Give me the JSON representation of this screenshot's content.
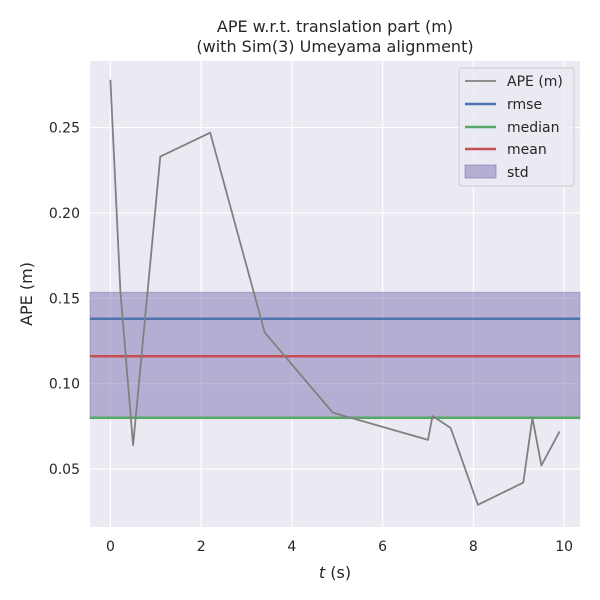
{
  "chart_data": {
    "type": "line",
    "title": "APE w.r.t. translation part (m)",
    "subtitle": "(with Sim(3) Umeyama alignment)",
    "xlabel_italic": "t",
    "xlabel_rest": " (s)",
    "ylabel": "APE (m)",
    "xlim": [
      -0.45,
      10.35
    ],
    "ylim": [
      0.016,
      0.289
    ],
    "xticks": [
      0,
      2,
      4,
      6,
      8,
      10
    ],
    "xtick_labels": [
      "0",
      "2",
      "4",
      "6",
      "8",
      "10"
    ],
    "yticks": [
      0.05,
      0.1,
      0.15,
      0.2,
      0.25
    ],
    "ytick_labels": [
      "0.05",
      "0.10",
      "0.15",
      "0.20",
      "0.25"
    ],
    "grid": true,
    "legend_position": "top-right",
    "series": {
      "name": "APE (m)",
      "color": "#808080",
      "x": [
        0.0,
        0.22,
        0.5,
        1.1,
        2.2,
        3.4,
        4.9,
        7.0,
        7.1,
        7.5,
        8.1,
        9.1,
        9.3,
        9.5,
        9.9
      ],
      "y": [
        0.278,
        0.154,
        0.064,
        0.233,
        0.247,
        0.13,
        0.083,
        0.067,
        0.081,
        0.074,
        0.029,
        0.042,
        0.08,
        0.052,
        0.072
      ]
    },
    "stats": {
      "rmse": {
        "label": "rmse",
        "value": 0.138,
        "color": "#4c72b0"
      },
      "median": {
        "label": "median",
        "value": 0.08,
        "color": "#55a868"
      },
      "mean": {
        "label": "mean",
        "value": 0.116,
        "color": "#c44e52"
      },
      "std": {
        "label": "std",
        "low": 0.0795,
        "high": 0.1535,
        "color": "#8172b2"
      }
    }
  }
}
